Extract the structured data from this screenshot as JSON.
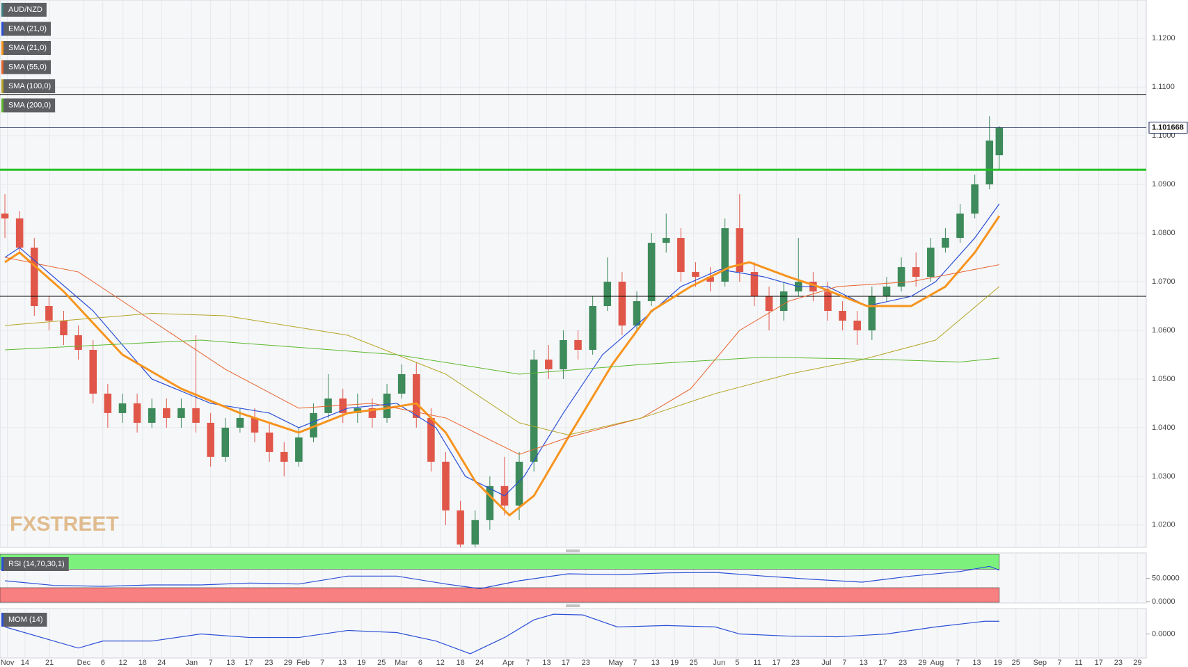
{
  "chart_data": [
    {
      "type": "candlestick",
      "name": "AUD/NZD",
      "color": "#3f7f7f",
      "up_color": "#3d8a5a",
      "down_color": "#e0574a",
      "grid": true,
      "watermark": "FXSTREET",
      "xlim": [
        -1,
        233
      ],
      "ylim": [
        1.0154,
        1.1279
      ],
      "yticks": [
        {
          "value": 1.02,
          "label": "1.0200"
        },
        {
          "value": 1.03,
          "label": "1.0300"
        },
        {
          "value": 1.04,
          "label": "1.0400"
        },
        {
          "value": 1.05,
          "label": "1.0500"
        },
        {
          "value": 1.06,
          "label": "1.0600"
        },
        {
          "value": 1.07,
          "label": "1.0700"
        },
        {
          "value": 1.08,
          "label": "1.0800"
        },
        {
          "value": 1.09,
          "label": "1.0900"
        },
        {
          "value": 1.1,
          "label": "1.1000"
        },
        {
          "value": 1.11,
          "label": "1.1100"
        },
        {
          "value": 1.12,
          "label": "1.1200"
        }
      ],
      "x": [
        0,
        3,
        6,
        9,
        12,
        15,
        18,
        21,
        24,
        27,
        30,
        33,
        36,
        39,
        42,
        45,
        48,
        51,
        54,
        57,
        60,
        63,
        66,
        69,
        72,
        75,
        78,
        81,
        84,
        87,
        90,
        93,
        96,
        99,
        102,
        105,
        108,
        111,
        114,
        117,
        120,
        123,
        126,
        129,
        132,
        135,
        138,
        141,
        144,
        147,
        150,
        153,
        156,
        159,
        162,
        165,
        168,
        171,
        174,
        177,
        180,
        183,
        186,
        189,
        192,
        195,
        198,
        201,
        203
      ],
      "open": [
        1.084,
        1.083,
        1.077,
        1.065,
        1.062,
        1.059,
        1.056,
        1.047,
        1.043,
        1.045,
        1.041,
        1.044,
        1.042,
        1.044,
        1.041,
        1.034,
        1.04,
        1.042,
        1.039,
        1.035,
        1.033,
        1.038,
        1.043,
        1.046,
        1.043,
        1.044,
        1.042,
        1.047,
        1.051,
        1.042,
        1.033,
        1.023,
        1.016,
        1.021,
        1.028,
        1.024,
        1.033,
        1.054,
        1.052,
        1.058,
        1.056,
        1.065,
        1.07,
        1.061,
        1.066,
        1.078,
        1.079,
        1.072,
        1.071,
        1.07,
        1.081,
        1.072,
        1.067,
        1.064,
        1.068,
        1.07,
        1.068,
        1.064,
        1.062,
        1.06,
        1.067,
        1.069,
        1.073,
        1.071,
        1.077,
        1.079,
        1.084,
        1.09,
        1.096
      ],
      "high": [
        1.088,
        1.0845,
        1.079,
        1.067,
        1.064,
        1.061,
        1.058,
        1.049,
        1.047,
        1.047,
        1.046,
        1.046,
        1.046,
        1.059,
        1.043,
        1.042,
        1.044,
        1.044,
        1.041,
        1.037,
        1.04,
        1.045,
        1.051,
        1.048,
        1.047,
        1.046,
        1.049,
        1.053,
        1.0535,
        1.044,
        1.035,
        1.025,
        1.023,
        1.03,
        1.034,
        1.035,
        1.056,
        1.057,
        1.06,
        1.06,
        1.067,
        1.075,
        1.072,
        1.068,
        1.08,
        1.084,
        1.081,
        1.074,
        1.073,
        1.083,
        1.088,
        1.074,
        1.069,
        1.07,
        1.079,
        1.072,
        1.07,
        1.066,
        1.064,
        1.069,
        1.071,
        1.075,
        1.076,
        1.079,
        1.081,
        1.086,
        1.092,
        1.104,
        1.102
      ],
      "low": [
        1.079,
        1.076,
        1.063,
        1.06,
        1.057,
        1.054,
        1.045,
        1.04,
        1.041,
        1.039,
        1.04,
        1.04,
        1.04,
        1.039,
        1.032,
        1.033,
        1.039,
        1.037,
        1.033,
        1.03,
        1.032,
        1.037,
        1.042,
        1.041,
        1.041,
        1.04,
        1.041,
        1.046,
        1.04,
        1.031,
        1.02,
        1.015,
        1.015,
        1.019,
        1.022,
        1.021,
        1.031,
        1.05,
        1.05,
        1.054,
        1.055,
        1.064,
        1.059,
        1.06,
        1.065,
        1.076,
        1.07,
        1.069,
        1.068,
        1.069,
        1.07,
        1.065,
        1.06,
        1.062,
        1.067,
        1.066,
        1.062,
        1.06,
        1.057,
        1.058,
        1.066,
        1.068,
        1.069,
        1.07,
        1.076,
        1.078,
        1.083,
        1.089,
        1.093
      ],
      "close": [
        1.083,
        1.077,
        1.065,
        1.062,
        1.059,
        1.056,
        1.047,
        1.043,
        1.045,
        1.041,
        1.044,
        1.042,
        1.044,
        1.041,
        1.034,
        1.04,
        1.042,
        1.039,
        1.035,
        1.033,
        1.038,
        1.043,
        1.046,
        1.043,
        1.044,
        1.042,
        1.047,
        1.051,
        1.042,
        1.033,
        1.023,
        1.016,
        1.021,
        1.028,
        1.024,
        1.033,
        1.054,
        1.052,
        1.058,
        1.056,
        1.065,
        1.07,
        1.061,
        1.066,
        1.078,
        1.079,
        1.072,
        1.071,
        1.07,
        1.081,
        1.072,
        1.067,
        1.064,
        1.068,
        1.07,
        1.068,
        1.064,
        1.062,
        1.06,
        1.067,
        1.069,
        1.073,
        1.071,
        1.077,
        1.079,
        1.084,
        1.09,
        1.099,
        1.1017
      ],
      "series": [
        {
          "name": "EMA (21,0)",
          "color": "#2a4fd6",
          "width": 1.2,
          "x": [
            0,
            3,
            18,
            30,
            42,
            54,
            60,
            70,
            80,
            88,
            94,
            102,
            106,
            114,
            122,
            130,
            138,
            146,
            155,
            162,
            168,
            176,
            185,
            190,
            198,
            203
          ],
          "values": [
            1.075,
            1.077,
            1.064,
            1.05,
            1.045,
            1.043,
            1.04,
            1.044,
            1.045,
            1.04,
            1.03,
            1.026,
            1.03,
            1.043,
            1.055,
            1.062,
            1.069,
            1.0725,
            1.071,
            1.069,
            1.069,
            1.065,
            1.067,
            1.07,
            1.079,
            1.086
          ]
        },
        {
          "name": "SMA (21,0)",
          "color": "#f7941d",
          "width": 3,
          "x": [
            0,
            3,
            12,
            24,
            36,
            48,
            60,
            70,
            78,
            84,
            90,
            96,
            103,
            108,
            115,
            124,
            132,
            140,
            148,
            152,
            160,
            166,
            176,
            185,
            192,
            198,
            203
          ],
          "values": [
            1.074,
            1.076,
            1.068,
            1.055,
            1.048,
            1.043,
            1.039,
            1.043,
            1.044,
            1.045,
            1.039,
            1.029,
            1.022,
            1.026,
            1.038,
            1.053,
            1.064,
            1.069,
            1.073,
            1.074,
            1.071,
            1.069,
            1.065,
            1.065,
            1.069,
            1.076,
            1.0835
          ]
        },
        {
          "name": "SMA (55,0)",
          "color": "#e8622c",
          "width": 1,
          "x": [
            0,
            15,
            30,
            45,
            60,
            75,
            90,
            105,
            115,
            130,
            140,
            150,
            160,
            170,
            185,
            203
          ],
          "values": [
            1.075,
            1.072,
            1.062,
            1.052,
            1.044,
            1.045,
            1.042,
            1.0345,
            1.038,
            1.042,
            1.048,
            1.06,
            1.066,
            1.069,
            1.07,
            1.0735
          ]
        },
        {
          "name": "SMA (100,0)",
          "color": "#b5a526",
          "width": 1,
          "x": [
            0,
            30,
            45,
            70,
            90,
            105,
            115,
            130,
            145,
            160,
            175,
            190,
            203
          ],
          "values": [
            1.061,
            1.0635,
            1.063,
            1.059,
            1.051,
            1.041,
            1.0385,
            1.042,
            1.047,
            1.051,
            1.054,
            1.058,
            1.069
          ]
        },
        {
          "name": "SMA (200,0)",
          "color": "#5cb82e",
          "width": 1,
          "x": [
            0,
            40,
            80,
            105,
            130,
            155,
            180,
            195,
            203
          ],
          "values": [
            1.056,
            1.058,
            1.055,
            1.051,
            1.053,
            1.0545,
            1.054,
            1.0535,
            1.0543
          ]
        }
      ],
      "levels": [
        {
          "value": 1.1085,
          "color": "#000000",
          "width": 1
        },
        {
          "value": 1.093,
          "color": "#22c022",
          "width": 3
        },
        {
          "value": 1.067,
          "color": "#000000",
          "width": 1
        }
      ],
      "last_price": 1.101668,
      "last_price_color": "#1a2a5a"
    },
    {
      "type": "line",
      "name": "RSI (14,70,30,1)",
      "color": "#2a4fd6",
      "overbought": 70,
      "oversold": 30,
      "overbought_color": "#7cf27c",
      "oversold_color": "#f98080",
      "xlim": [
        -1,
        233
      ],
      "ylim": [
        -3,
        105
      ],
      "yticks": [
        {
          "value": 50,
          "label": "50.0000"
        },
        {
          "value": 0,
          "label": "0.0000"
        }
      ],
      "x": [
        0,
        10,
        20,
        30,
        40,
        50,
        60,
        70,
        80,
        90,
        97,
        105,
        115,
        125,
        135,
        145,
        155,
        165,
        175,
        185,
        195,
        201,
        203
      ],
      "values": [
        45,
        35,
        33,
        36,
        36,
        40,
        38,
        55,
        55,
        38,
        28,
        45,
        60,
        58,
        62,
        63,
        55,
        48,
        42,
        55,
        65,
        76,
        68
      ]
    },
    {
      "type": "line",
      "name": "MOM (14)",
      "color": "#2a4fd6",
      "xlim": [
        -1,
        233
      ],
      "ylim": [
        -0.034,
        0.036
      ],
      "yticks": [
        {
          "value": 0,
          "label": "0.0000"
        }
      ],
      "x": [
        0,
        10,
        15,
        20,
        30,
        40,
        50,
        60,
        70,
        80,
        88,
        95,
        102,
        108,
        112,
        118,
        125,
        135,
        145,
        150,
        160,
        170,
        180,
        190,
        200,
        203
      ],
      "values": [
        0.01,
        -0.01,
        -0.02,
        -0.01,
        -0.01,
        0,
        -0.005,
        -0.005,
        0.005,
        0.002,
        -0.01,
        -0.028,
        -0.005,
        0.02,
        0.028,
        0.027,
        0.01,
        0.012,
        0.01,
        0,
        -0.003,
        -0.004,
        0,
        0.01,
        0.018,
        0.018
      ],
      "xticks": [
        {
          "value": 0.5,
          "label": "Nov"
        },
        {
          "value": 4.1,
          "label": "14"
        },
        {
          "value": 9.1,
          "label": "21"
        },
        {
          "value": 16.1,
          "label": "Dec"
        },
        {
          "value": 20,
          "label": "6"
        },
        {
          "value": 24.1,
          "label": "12"
        },
        {
          "value": 28.1,
          "label": "18"
        },
        {
          "value": 32,
          "label": "24"
        },
        {
          "value": 38.1,
          "label": "Jan"
        },
        {
          "value": 42,
          "label": "7"
        },
        {
          "value": 46.1,
          "label": "13"
        },
        {
          "value": 49.8,
          "label": "17"
        },
        {
          "value": 53.9,
          "label": "23"
        },
        {
          "value": 57.8,
          "label": "29"
        },
        {
          "value": 60.9,
          "label": "Feb"
        },
        {
          "value": 64.8,
          "label": "7"
        },
        {
          "value": 68.9,
          "label": "13"
        },
        {
          "value": 72.8,
          "label": "19"
        },
        {
          "value": 76.9,
          "label": "25"
        },
        {
          "value": 80.9,
          "label": "Mar"
        },
        {
          "value": 84.8,
          "label": "6"
        },
        {
          "value": 88.9,
          "label": "12"
        },
        {
          "value": 93,
          "label": "18"
        },
        {
          "value": 96.9,
          "label": "24"
        },
        {
          "value": 102.8,
          "label": "Apr"
        },
        {
          "value": 106.7,
          "label": "7"
        },
        {
          "value": 110.6,
          "label": "13"
        },
        {
          "value": 114.5,
          "label": "17"
        },
        {
          "value": 118.6,
          "label": "23"
        },
        {
          "value": 124.7,
          "label": "May"
        },
        {
          "value": 128.6,
          "label": "7"
        },
        {
          "value": 132.8,
          "label": "13"
        },
        {
          "value": 136.7,
          "label": "19"
        },
        {
          "value": 140.6,
          "label": "25"
        },
        {
          "value": 145.8,
          "label": "Jun"
        },
        {
          "value": 149.5,
          "label": "5"
        },
        {
          "value": 153.6,
          "label": "11"
        },
        {
          "value": 157.5,
          "label": "17"
        },
        {
          "value": 161.4,
          "label": "23"
        },
        {
          "value": 167.7,
          "label": "Jul"
        },
        {
          "value": 171.4,
          "label": "7"
        },
        {
          "value": 175.3,
          "label": "13"
        },
        {
          "value": 179.2,
          "label": "17"
        },
        {
          "value": 183.3,
          "label": "23"
        },
        {
          "value": 187.3,
          "label": "29"
        },
        {
          "value": 190.3,
          "label": "Aug"
        },
        {
          "value": 194.5,
          "label": "7"
        },
        {
          "value": 198.4,
          "label": "13"
        },
        {
          "value": 202.7,
          "label": "19"
        },
        {
          "value": 206.4,
          "label": "25"
        },
        {
          "value": 211.3,
          "label": "Sep"
        },
        {
          "value": 215.3,
          "label": "7"
        },
        {
          "value": 219.2,
          "label": "11"
        },
        {
          "value": 223.3,
          "label": "17"
        },
        {
          "value": 227.3,
          "label": "23"
        },
        {
          "value": 231.2,
          "label": "29"
        }
      ]
    }
  ]
}
